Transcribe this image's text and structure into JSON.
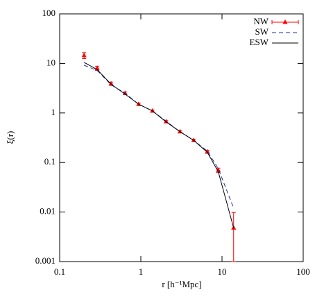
{
  "chart_data": {
    "type": "line",
    "xlabel": "r [h⁻¹Mpc]",
    "ylabel": "ξ(r)",
    "log_x": true,
    "log_y": true,
    "xlim": [
      0.1,
      100
    ],
    "xticks": [
      0.1,
      1,
      10,
      100
    ],
    "ylim": [
      0.001,
      100
    ],
    "yticks": [
      0.001,
      0.01,
      0.1,
      1,
      10,
      100
    ],
    "legend": "upper right",
    "series": [
      {
        "name": "NW",
        "color": "#ff0000",
        "style": "errorbar",
        "x": [
          0.2,
          0.29,
          0.43,
          0.64,
          0.94,
          1.39,
          2.05,
          3.03,
          4.48,
          6.6,
          9.0,
          13.9
        ],
        "values": [
          14.5,
          8,
          3.9,
          2.5,
          1.5,
          1.1,
          0.67,
          0.42,
          0.28,
          0.165,
          0.07,
          0.0048
        ],
        "errors": [
          2,
          0.8,
          0.3,
          0.15,
          0.08,
          0.05,
          0.03,
          0.02,
          0.015,
          0.012,
          0.007,
          0.005
        ]
      },
      {
        "name": "SW",
        "color": "#1f2fa0",
        "style": "dashed",
        "x": [
          0.2,
          0.29,
          0.43,
          0.64,
          0.94,
          1.39,
          2.05,
          3.03,
          4.48,
          6.6,
          9.0,
          13.9
        ],
        "values": [
          9.2,
          7.2,
          3.7,
          2.5,
          1.5,
          1.1,
          0.68,
          0.42,
          0.28,
          0.17,
          0.075,
          0.012
        ]
      },
      {
        "name": "ESW",
        "color": "#000000",
        "style": "solid",
        "x": [
          0.2,
          0.29,
          0.43,
          0.64,
          0.94,
          1.39,
          2.05,
          3.03,
          4.48,
          6.6,
          9.0,
          13.9
        ],
        "values": [
          10.5,
          7.5,
          3.8,
          2.4,
          1.5,
          1.1,
          0.66,
          0.42,
          0.28,
          0.16,
          0.065,
          0.0048
        ]
      }
    ]
  }
}
